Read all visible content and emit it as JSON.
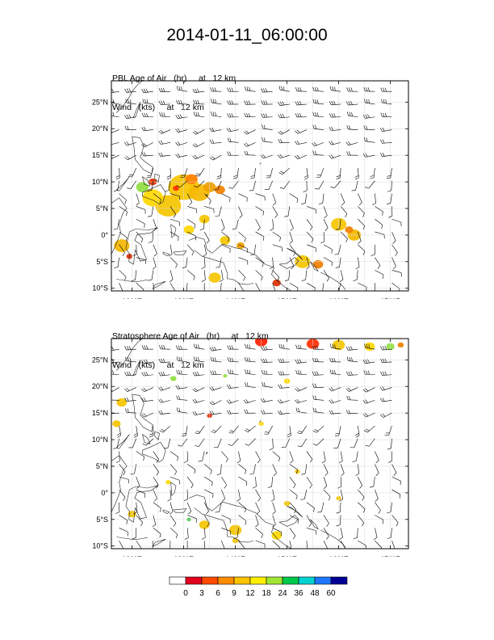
{
  "title": "2014-01-11_06:00:00",
  "lon_ticks": [
    "120°E",
    "130°E",
    "140°E",
    "150°E",
    "160°E",
    "170°E"
  ],
  "lat_ticks": [
    "25°N",
    "20°N",
    "15°N",
    "10°N",
    "5°N",
    "0°",
    "5°S",
    "10°S"
  ],
  "panels": [
    {
      "line1": "PBL Age of Air   (hr)     at   12 km",
      "line2": "Wind   (kts)     at   12 km",
      "blobs": [
        [
          130,
          9,
          "#f5c400",
          3
        ],
        [
          127,
          5.5,
          "#f5c400",
          2.5
        ],
        [
          124,
          7,
          "#ffd800",
          2
        ],
        [
          133,
          8,
          "#f5b800",
          2
        ],
        [
          135,
          9,
          "#f0a000",
          1.2
        ],
        [
          137,
          8.5,
          "#f08000",
          1
        ],
        [
          131.5,
          10.5,
          "#ff8000",
          1.2
        ],
        [
          122,
          9,
          "#90e040",
          1.2
        ],
        [
          124,
          10,
          "#e03000",
          0.8
        ],
        [
          128.5,
          8.8,
          "#ff3000",
          0.6
        ],
        [
          118,
          -2,
          "#f5b800",
          1.5
        ],
        [
          119.5,
          -4,
          "#e03000",
          0.6
        ],
        [
          131,
          1,
          "#ffd800",
          1
        ],
        [
          138,
          -1,
          "#f5c400",
          1
        ],
        [
          141,
          -2,
          "#f0a000",
          0.8
        ],
        [
          136,
          -8,
          "#f5c400",
          1.2
        ],
        [
          153,
          -5,
          "#f5c400",
          1.5
        ],
        [
          156,
          -5.5,
          "#f08000",
          1
        ],
        [
          160,
          2,
          "#f5c400",
          1.5
        ],
        [
          163,
          0,
          "#f5b800",
          1.3
        ],
        [
          162,
          1,
          "#f08000",
          0.8
        ],
        [
          148,
          -9,
          "#e03000",
          0.8
        ],
        [
          134,
          3,
          "#f5c400",
          1
        ]
      ]
    },
    {
      "line1": "Stratosphere Age of Air   (hr)     at   12 km",
      "line2": "Wind   (kts)     at   12 km",
      "blobs": [
        [
          155,
          28,
          "#ff3000",
          1.2
        ],
        [
          145,
          28.5,
          "#ff2000",
          1.2
        ],
        [
          160,
          27.8,
          "#f5c400",
          1.2
        ],
        [
          166,
          27.5,
          "#ffd800",
          1
        ],
        [
          170,
          27.5,
          "#90e040",
          0.8
        ],
        [
          172,
          27.8,
          "#f08000",
          0.6
        ],
        [
          118,
          17,
          "#f5c400",
          1
        ],
        [
          117,
          13,
          "#f5c400",
          0.8
        ],
        [
          135,
          14.5,
          "#e03000",
          0.5
        ],
        [
          128,
          21.5,
          "#90e040",
          0.6
        ],
        [
          138,
          22,
          "#90e040",
          0.4
        ],
        [
          150,
          21,
          "#ffd800",
          0.6
        ],
        [
          145,
          13,
          "#ffd800",
          0.5
        ],
        [
          131,
          -5,
          "#30c030",
          0.4
        ],
        [
          134,
          -6,
          "#f5c400",
          1
        ],
        [
          140,
          -7,
          "#f5c400",
          1.2
        ],
        [
          150,
          -2,
          "#f5c400",
          0.6
        ],
        [
          160,
          -1,
          "#f5c400",
          0.5
        ],
        [
          175,
          0,
          "#f08000",
          0.6
        ],
        [
          148,
          -8,
          "#ffd800",
          1
        ],
        [
          127,
          2,
          "#ffd800",
          0.5
        ],
        [
          120,
          -4,
          "#f5c400",
          0.8
        ],
        [
          152,
          4,
          "#f5c400",
          0.5
        ],
        [
          140,
          -9,
          "#f5c400",
          0.6
        ]
      ]
    }
  ],
  "colorbar": {
    "labels": [
      "0",
      "3",
      "6",
      "9",
      "12",
      "18",
      "24",
      "36",
      "48",
      "60"
    ],
    "colors": [
      "#ffffff",
      "#e3001e",
      "#ff4a00",
      "#ff8c00",
      "#ffc400",
      "#fff000",
      "#a0e632",
      "#00c84a",
      "#00d2d2",
      "#1e78ff",
      "#000096"
    ]
  }
}
